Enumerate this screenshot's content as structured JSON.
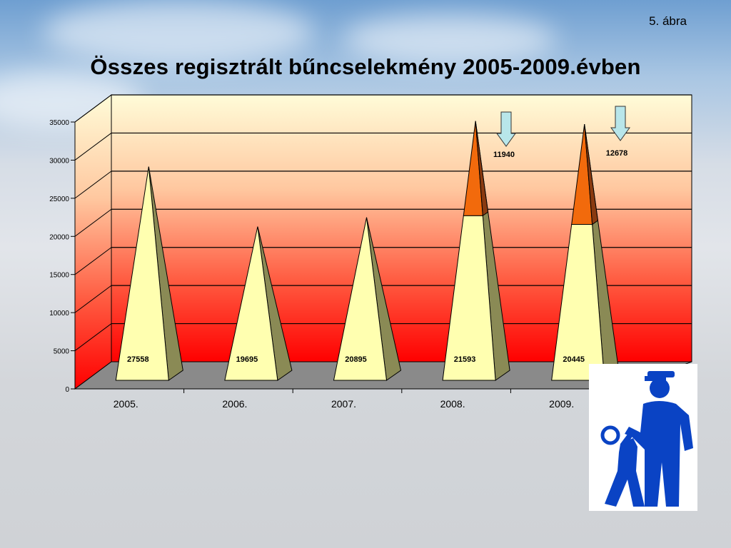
{
  "figure_label": "5. ábra",
  "title": "Összes regisztrált bűncselekmény 2005-2009.évben",
  "chart_data": {
    "type": "bar",
    "style": "3d-pyramid-stacked",
    "title": "Összes regisztrált bűncselekmény 2005-2009.évben",
    "xlabel": "",
    "ylabel": "",
    "ylim": [
      0,
      35000
    ],
    "yticks": [
      "0",
      "5000",
      "10000",
      "15000",
      "20000",
      "25000",
      "30000",
      "35000"
    ],
    "categories": [
      "2005.",
      "2006.",
      "2007.",
      "2008.",
      "2009."
    ],
    "series": [
      {
        "values": [
          27558,
          19695,
          20895,
          21593,
          20445
        ],
        "color": "#ffffb0"
      },
      {
        "values": [
          0,
          0,
          0,
          11940,
          12678
        ],
        "color": "#f26a0c"
      }
    ],
    "data_labels": [
      "27558",
      "19695",
      "20895",
      "21593",
      "20445"
    ],
    "annotations": [
      "11940",
      "12678"
    ],
    "grid": true,
    "colors": {
      "background_top": "#fffcd8",
      "background_bottom": "#ff0000",
      "floor": "#8a8a8a",
      "arrow": "#b8e6ea",
      "pyramid_side": "#8a8a55"
    }
  },
  "police_sign": {
    "icon": "police-officer-arrest-icon",
    "color": "#0a43c4"
  }
}
